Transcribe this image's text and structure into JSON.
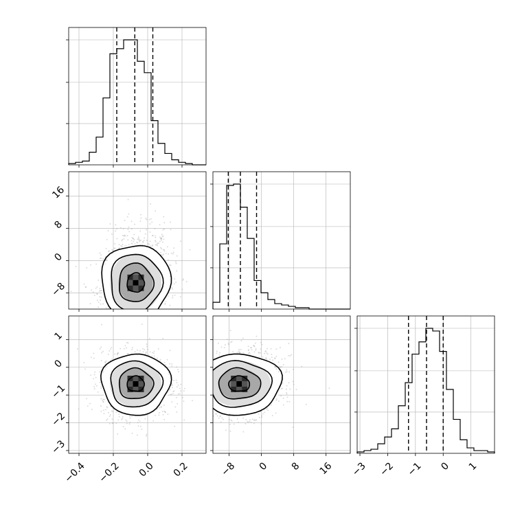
{
  "chart_data": {
    "type": "corner",
    "parameters": [
      {
        "range": [
          -0.46,
          0.34
        ],
        "ticks": [
          -0.4,
          -0.2,
          0.0,
          0.2
        ],
        "tick_labels": [
          "−0.4",
          "−0.2",
          "0.0",
          "0.2"
        ],
        "quantiles": [
          -0.18,
          -0.075,
          0.03
        ],
        "hist_edges_start": -0.46,
        "hist_bin_width": 0.04,
        "hist_counts": [
          1,
          2,
          3,
          10,
          22,
          53,
          88,
          92,
          99,
          99,
          82,
          73,
          35,
          17,
          9,
          4,
          2,
          1,
          0,
          0
        ]
      },
      {
        "range": [
          -12,
          22
        ],
        "ticks": [
          -8,
          0,
          8,
          16
        ],
        "tick_labels": [
          "−8",
          "0",
          "8",
          "16"
        ],
        "quantiles": [
          -8.2,
          -5.2,
          -1.2
        ],
        "hist_edges_start": -12,
        "hist_bin_width": 1.7,
        "hist_counts": [
          5,
          48,
          91,
          92,
          75,
          52,
          21,
          12,
          7,
          4,
          3,
          2,
          1,
          1,
          0,
          0,
          0,
          0,
          0,
          0
        ]
      },
      {
        "range": [
          -3.1,
          1.85
        ],
        "ticks": [
          -3,
          -2,
          -1,
          0,
          1
        ],
        "tick_labels": [
          "−3",
          "−2",
          "−1",
          "0",
          "1"
        ],
        "quantiles": [
          -1.25,
          -0.6,
          0.0
        ],
        "hist_edges_start": -3.1,
        "hist_bin_width": 0.2475,
        "hist_counts": [
          1,
          2,
          3,
          7,
          12,
          18,
          35,
          52,
          73,
          82,
          92,
          90,
          75,
          47,
          25,
          10,
          4,
          2,
          2,
          1
        ]
      }
    ],
    "pairs": [
      {
        "x_param": 0,
        "y_param": 1,
        "mean": [
          -0.07,
          -5.5
        ],
        "std": [
          0.1,
          5.2
        ],
        "corr": 0.15
      },
      {
        "x_param": 0,
        "y_param": 2,
        "mean": [
          -0.07,
          -0.6
        ],
        "std": [
          0.1,
          0.6
        ],
        "corr": 0.0
      },
      {
        "x_param": 1,
        "y_param": 2,
        "mean": [
          -5.5,
          -0.6
        ],
        "std": [
          5.2,
          0.6
        ],
        "corr": 0.15
      }
    ],
    "grid": true,
    "contour_levels_sigma": [
      0.5,
      1.0,
      1.5,
      2.0
    ]
  }
}
